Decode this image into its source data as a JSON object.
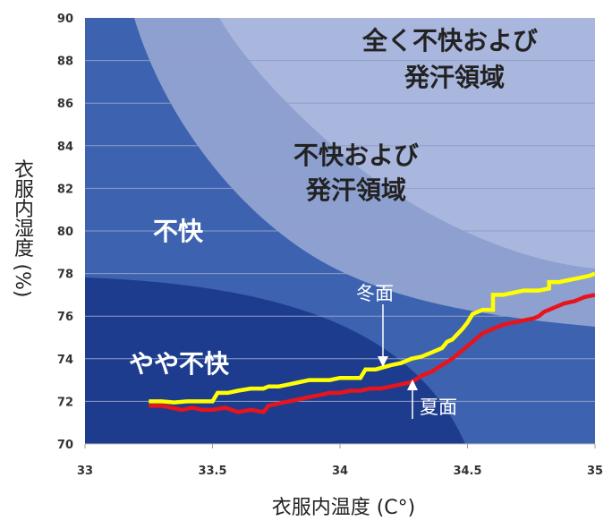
{
  "chart_data": {
    "type": "line",
    "xlabel": "衣服内温度 (C°)",
    "ylabel": "衣服内湿度 (%)",
    "xlim": [
      33,
      35
    ],
    "ylim": [
      70,
      90
    ],
    "x_ticks": [
      "33",
      "33.5",
      "34",
      "34.5",
      "35"
    ],
    "y_ticks": [
      "90",
      "88",
      "86",
      "84",
      "82",
      "80",
      "78",
      "76",
      "74",
      "72",
      "70"
    ],
    "grid": true,
    "regions": [
      {
        "label_lines": [
          "全く不快および",
          "発汗領域"
        ]
      },
      {
        "label_lines": [
          "不快および",
          "発汗領域"
        ]
      },
      {
        "label_lines": [
          "不快"
        ]
      },
      {
        "label_lines": [
          "やや不快"
        ]
      }
    ],
    "series": [
      {
        "name": "冬面",
        "color": "#ffff00",
        "points": [
          [
            33.25,
            72.0
          ],
          [
            33.3,
            72.0
          ],
          [
            33.35,
            71.95
          ],
          [
            33.4,
            72.0
          ],
          [
            33.5,
            72.0
          ],
          [
            33.52,
            72.4
          ],
          [
            33.56,
            72.4
          ],
          [
            33.6,
            72.5
          ],
          [
            33.65,
            72.6
          ],
          [
            33.7,
            72.6
          ],
          [
            33.72,
            72.7
          ],
          [
            33.76,
            72.7
          ],
          [
            33.8,
            72.8
          ],
          [
            33.84,
            72.9
          ],
          [
            33.88,
            73.0
          ],
          [
            33.92,
            73.0
          ],
          [
            33.96,
            73.0
          ],
          [
            34.0,
            73.1
          ],
          [
            34.04,
            73.1
          ],
          [
            34.08,
            73.1
          ],
          [
            34.1,
            73.5
          ],
          [
            34.14,
            73.5
          ],
          [
            34.2,
            73.7
          ],
          [
            34.24,
            73.8
          ],
          [
            34.28,
            74.0
          ],
          [
            34.32,
            74.1
          ],
          [
            34.36,
            74.3
          ],
          [
            34.4,
            74.5
          ],
          [
            34.42,
            74.8
          ],
          [
            34.44,
            74.9
          ],
          [
            34.48,
            75.4
          ],
          [
            34.5,
            75.7
          ],
          [
            34.52,
            76.1
          ],
          [
            34.56,
            76.3
          ],
          [
            34.6,
            76.3
          ],
          [
            34.6,
            77.0
          ],
          [
            34.64,
            77.0
          ],
          [
            34.68,
            77.1
          ],
          [
            34.72,
            77.2
          ],
          [
            34.78,
            77.2
          ],
          [
            34.82,
            77.3
          ],
          [
            34.82,
            77.6
          ],
          [
            34.86,
            77.6
          ],
          [
            34.9,
            77.7
          ],
          [
            34.94,
            77.8
          ],
          [
            34.98,
            77.9
          ],
          [
            35.0,
            78.0
          ]
        ]
      },
      {
        "name": "夏面",
        "color": "#e8141c",
        "points": [
          [
            33.25,
            71.8
          ],
          [
            33.3,
            71.8
          ],
          [
            33.34,
            71.7
          ],
          [
            33.38,
            71.6
          ],
          [
            33.42,
            71.7
          ],
          [
            33.46,
            71.6
          ],
          [
            33.5,
            71.6
          ],
          [
            33.55,
            71.7
          ],
          [
            33.6,
            71.5
          ],
          [
            33.65,
            71.6
          ],
          [
            33.7,
            71.5
          ],
          [
            33.72,
            71.8
          ],
          [
            33.76,
            71.9
          ],
          [
            33.8,
            72.0
          ],
          [
            33.84,
            72.1
          ],
          [
            33.88,
            72.2
          ],
          [
            33.92,
            72.3
          ],
          [
            33.96,
            72.4
          ],
          [
            34.0,
            72.4
          ],
          [
            34.04,
            72.5
          ],
          [
            34.08,
            72.5
          ],
          [
            34.12,
            72.6
          ],
          [
            34.16,
            72.6
          ],
          [
            34.2,
            72.7
          ],
          [
            34.24,
            72.8
          ],
          [
            34.28,
            72.9
          ],
          [
            34.32,
            73.2
          ],
          [
            34.36,
            73.4
          ],
          [
            34.4,
            73.7
          ],
          [
            34.44,
            74.0
          ],
          [
            34.48,
            74.4
          ],
          [
            34.52,
            74.8
          ],
          [
            34.56,
            75.2
          ],
          [
            34.6,
            75.4
          ],
          [
            34.64,
            75.6
          ],
          [
            34.68,
            75.7
          ],
          [
            34.72,
            75.8
          ],
          [
            34.76,
            75.9
          ],
          [
            34.78,
            76.0
          ],
          [
            34.8,
            76.2
          ],
          [
            34.84,
            76.4
          ],
          [
            34.88,
            76.6
          ],
          [
            34.92,
            76.7
          ],
          [
            34.96,
            76.9
          ],
          [
            35.0,
            77.0
          ]
        ]
      }
    ],
    "annotations": [
      {
        "text": "冬面",
        "series": "冬面",
        "at": [
          34.15,
          73.6
        ]
      },
      {
        "text": "夏面",
        "series": "夏面",
        "at": [
          34.3,
          72.7
        ]
      }
    ]
  }
}
